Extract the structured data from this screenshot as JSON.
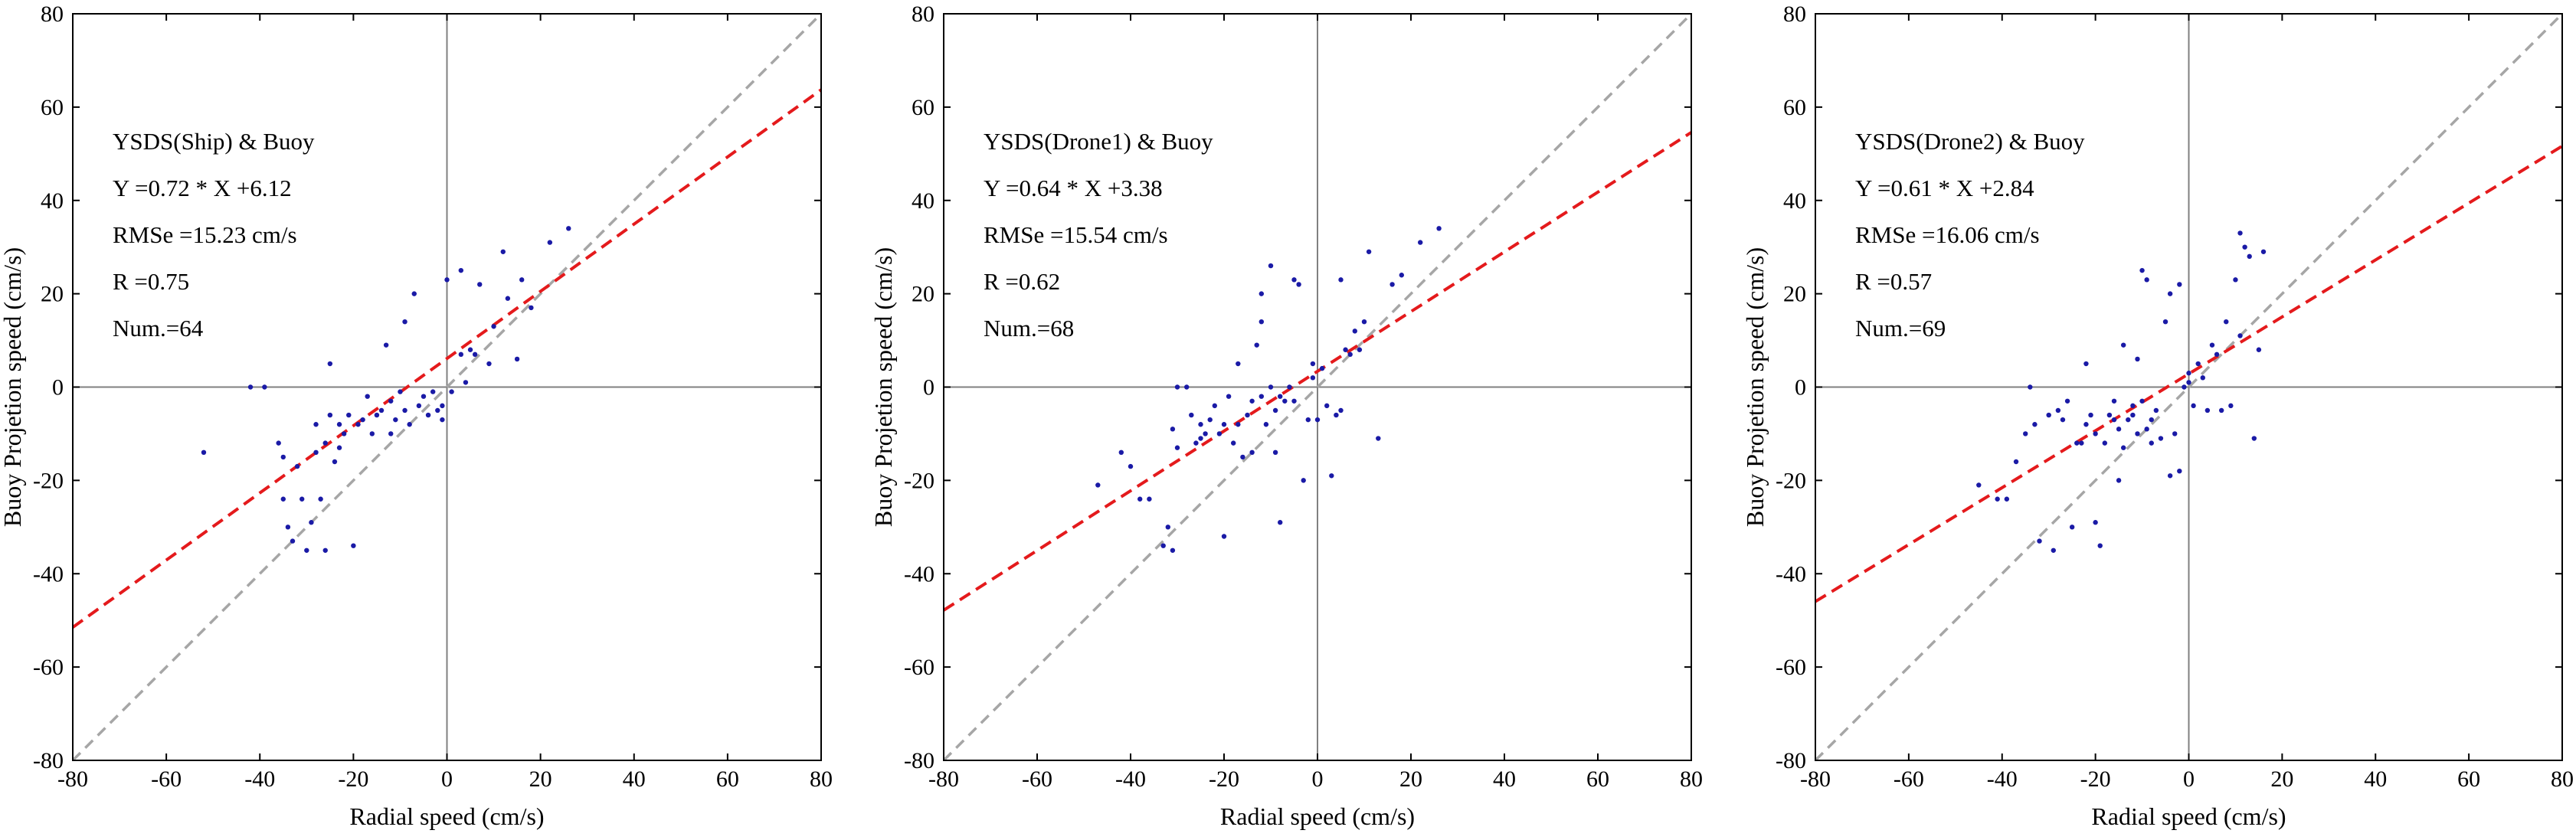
{
  "chart_data": [
    {
      "type": "scatter",
      "panel": "ship",
      "xlabel": "Radial speed (cm/s)",
      "ylabel": "Buoy Projetion speed (cm/s)",
      "xlim": [
        -80,
        80
      ],
      "ylim": [
        -80,
        80
      ],
      "xticks": [
        -80,
        -60,
        -40,
        -20,
        0,
        20,
        40,
        60,
        80
      ],
      "yticks": [
        -80,
        -60,
        -40,
        -20,
        0,
        20,
        40,
        60,
        80
      ],
      "annotations": [
        "YSDS(Ship) & Buoy",
        "Y =0.72 * X +6.12",
        "RMSe =15.23 cm/s",
        "R =0.75",
        "Num.=64"
      ],
      "fit": {
        "slope": 0.72,
        "intercept": 6.12,
        "color": "#e41a1c"
      },
      "identity_line_color": "#a6a6a6",
      "point_color": "#1a1aa6",
      "points": [
        [
          -52,
          -14
        ],
        [
          -42,
          0
        ],
        [
          -39,
          0
        ],
        [
          -36,
          -12
        ],
        [
          -35,
          -15
        ],
        [
          -35,
          -24
        ],
        [
          -34,
          -30
        ],
        [
          -33,
          -33
        ],
        [
          -32,
          -17
        ],
        [
          -31,
          -24
        ],
        [
          -30,
          -35
        ],
        [
          -29,
          -29
        ],
        [
          -28,
          -14
        ],
        [
          -28,
          -8
        ],
        [
          -27,
          -24
        ],
        [
          -26,
          -35
        ],
        [
          -26,
          -12
        ],
        [
          -25,
          -6
        ],
        [
          -25,
          5
        ],
        [
          -24,
          -16
        ],
        [
          -23,
          -13
        ],
        [
          -23,
          -8
        ],
        [
          -22,
          -10
        ],
        [
          -21,
          -6
        ],
        [
          -20,
          -34
        ],
        [
          -19,
          -8
        ],
        [
          -18,
          -7
        ],
        [
          -17,
          -2
        ],
        [
          -16,
          -10
        ],
        [
          -15,
          -6
        ],
        [
          -14,
          -5
        ],
        [
          -13,
          9
        ],
        [
          -12,
          -3
        ],
        [
          -12,
          -10
        ],
        [
          -11,
          -7
        ],
        [
          -10,
          -1
        ],
        [
          -9,
          -5
        ],
        [
          -9,
          14
        ],
        [
          -8,
          -8
        ],
        [
          -7,
          20
        ],
        [
          -6,
          -4
        ],
        [
          -5,
          -2
        ],
        [
          -4,
          -6
        ],
        [
          -3,
          -1
        ],
        [
          -2,
          -5
        ],
        [
          -1,
          -7
        ],
        [
          -1,
          -4
        ],
        [
          0,
          23
        ],
        [
          1,
          -1
        ],
        [
          3,
          25
        ],
        [
          3,
          7
        ],
        [
          4,
          1
        ],
        [
          5,
          8
        ],
        [
          6,
          7
        ],
        [
          7,
          22
        ],
        [
          9,
          5
        ],
        [
          10,
          13
        ],
        [
          12,
          29
        ],
        [
          13,
          19
        ],
        [
          15,
          6
        ],
        [
          16,
          23
        ],
        [
          18,
          17
        ],
        [
          22,
          31
        ],
        [
          26,
          34
        ]
      ]
    },
    {
      "type": "scatter",
      "panel": "drone1",
      "xlabel": "Radial speed (cm/s)",
      "ylabel": "Buoy Projetion speed (cm/s)",
      "xlim": [
        -80,
        80
      ],
      "ylim": [
        -80,
        80
      ],
      "xticks": [
        -80,
        -60,
        -40,
        -20,
        0,
        20,
        40,
        60,
        80
      ],
      "yticks": [
        -80,
        -60,
        -40,
        -20,
        0,
        20,
        40,
        60,
        80
      ],
      "annotations": [
        "YSDS(Drone1) & Buoy",
        "Y =0.64 * X +3.38",
        "RMSe =15.54 cm/s",
        "R =0.62",
        "Num.=68"
      ],
      "fit": {
        "slope": 0.64,
        "intercept": 3.38,
        "color": "#e41a1c"
      },
      "identity_line_color": "#a6a6a6",
      "point_color": "#1a1aa6",
      "points": [
        [
          -47,
          -21
        ],
        [
          -42,
          -14
        ],
        [
          -40,
          -17
        ],
        [
          -38,
          -24
        ],
        [
          -36,
          -24
        ],
        [
          -33,
          -34
        ],
        [
          -32,
          -30
        ],
        [
          -31,
          -35
        ],
        [
          -31,
          -9
        ],
        [
          -30,
          -13
        ],
        [
          -30,
          0
        ],
        [
          -28,
          0
        ],
        [
          -27,
          -6
        ],
        [
          -26,
          -12
        ],
        [
          -25,
          -11
        ],
        [
          -25,
          -8
        ],
        [
          -24,
          -10
        ],
        [
          -23,
          -7
        ],
        [
          -22,
          -4
        ],
        [
          -21,
          -10
        ],
        [
          -20,
          -32
        ],
        [
          -20,
          -8
        ],
        [
          -19,
          -2
        ],
        [
          -18,
          -12
        ],
        [
          -17,
          -8
        ],
        [
          -17,
          5
        ],
        [
          -16,
          -15
        ],
        [
          -15,
          -6
        ],
        [
          -14,
          -3
        ],
        [
          -14,
          -14
        ],
        [
          -13,
          9
        ],
        [
          -12,
          20
        ],
        [
          -12,
          14
        ],
        [
          -12,
          -2
        ],
        [
          -11,
          -8
        ],
        [
          -10,
          26
        ],
        [
          -10,
          0
        ],
        [
          -9,
          -14
        ],
        [
          -9,
          -5
        ],
        [
          -8,
          -29
        ],
        [
          -8,
          -2
        ],
        [
          -7,
          -3
        ],
        [
          -6,
          0
        ],
        [
          -5,
          23
        ],
        [
          -5,
          -3
        ],
        [
          -4,
          22
        ],
        [
          -3,
          -20
        ],
        [
          -2,
          -7
        ],
        [
          -1,
          2
        ],
        [
          -1,
          5
        ],
        [
          0,
          -7
        ],
        [
          1,
          4
        ],
        [
          2,
          -4
        ],
        [
          3,
          -19
        ],
        [
          4,
          -6
        ],
        [
          5,
          23
        ],
        [
          5,
          -5
        ],
        [
          6,
          8
        ],
        [
          7,
          7
        ],
        [
          8,
          12
        ],
        [
          9,
          8
        ],
        [
          10,
          14
        ],
        [
          11,
          29
        ],
        [
          13,
          -11
        ],
        [
          16,
          22
        ],
        [
          18,
          24
        ],
        [
          22,
          31
        ],
        [
          26,
          34
        ]
      ]
    },
    {
      "type": "scatter",
      "panel": "drone2",
      "xlabel": "Radial speed (cm/s)",
      "ylabel": "Buoy Projetion speed (cm/s)",
      "xlim": [
        -80,
        80
      ],
      "ylim": [
        -80,
        80
      ],
      "xticks": [
        -80,
        -60,
        -40,
        -20,
        0,
        20,
        40,
        60,
        80
      ],
      "yticks": [
        -80,
        -60,
        -40,
        -20,
        0,
        20,
        40,
        60,
        80
      ],
      "annotations": [
        "YSDS(Drone2) & Buoy",
        "Y =0.61 * X +2.84",
        "RMSe =16.06 cm/s",
        "R =0.57",
        "Num.=69"
      ],
      "fit": {
        "slope": 0.61,
        "intercept": 2.84,
        "color": "#e41a1c"
      },
      "identity_line_color": "#a6a6a6",
      "point_color": "#1a1aa6",
      "points": [
        [
          -45,
          -21
        ],
        [
          -41,
          -24
        ],
        [
          -39,
          -24
        ],
        [
          -37,
          -16
        ],
        [
          -35,
          -10
        ],
        [
          -34,
          0
        ],
        [
          -33,
          -8
        ],
        [
          -32,
          -33
        ],
        [
          -30,
          -6
        ],
        [
          -29,
          -35
        ],
        [
          -28,
          -5
        ],
        [
          -27,
          -7
        ],
        [
          -26,
          -3
        ],
        [
          -25,
          -30
        ],
        [
          -24,
          -12
        ],
        [
          -23,
          -12
        ],
        [
          -22,
          5
        ],
        [
          -22,
          -8
        ],
        [
          -21,
          -6
        ],
        [
          -20,
          -29
        ],
        [
          -20,
          -10
        ],
        [
          -19,
          -34
        ],
        [
          -18,
          -12
        ],
        [
          -17,
          -6
        ],
        [
          -16,
          -3
        ],
        [
          -16,
          -7
        ],
        [
          -15,
          -20
        ],
        [
          -15,
          -9
        ],
        [
          -14,
          9
        ],
        [
          -14,
          -13
        ],
        [
          -13,
          -7
        ],
        [
          -12,
          -6
        ],
        [
          -12,
          -4
        ],
        [
          -11,
          6
        ],
        [
          -11,
          -10
        ],
        [
          -10,
          25
        ],
        [
          -10,
          -3
        ],
        [
          -9,
          -9
        ],
        [
          -9,
          23
        ],
        [
          -8,
          -12
        ],
        [
          -8,
          -7
        ],
        [
          -7,
          -5
        ],
        [
          -6,
          -11
        ],
        [
          -5,
          14
        ],
        [
          -4,
          -19
        ],
        [
          -4,
          20
        ],
        [
          -3,
          -10
        ],
        [
          -2,
          22
        ],
        [
          -2,
          -18
        ],
        [
          -1,
          0
        ],
        [
          0,
          1
        ],
        [
          0,
          3
        ],
        [
          1,
          -4
        ],
        [
          2,
          5
        ],
        [
          3,
          2
        ],
        [
          4,
          -5
        ],
        [
          5,
          9
        ],
        [
          6,
          7
        ],
        [
          7,
          -5
        ],
        [
          8,
          14
        ],
        [
          9,
          -4
        ],
        [
          10,
          23
        ],
        [
          11,
          11
        ],
        [
          11,
          33
        ],
        [
          12,
          30
        ],
        [
          13,
          28
        ],
        [
          14,
          -11
        ],
        [
          15,
          8
        ],
        [
          16,
          29
        ]
      ]
    }
  ]
}
